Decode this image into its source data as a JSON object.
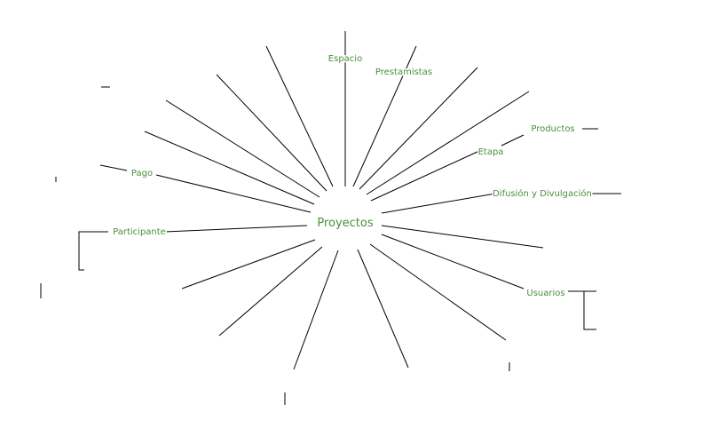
{
  "diagram": {
    "center_label": "Proyectos",
    "labels": {
      "espacio": "Espacio",
      "prestamista": "Prestamistas",
      "productos": "Productos",
      "etapa": "Etapa",
      "difusion": "Difusión y Divulgación",
      "pago": "Pago",
      "participante": "Participante",
      "usuarios": "Usuarios"
    },
    "colors": {
      "label": "#4a8f3c",
      "line": "#000000",
      "background": "#ffffff"
    }
  }
}
